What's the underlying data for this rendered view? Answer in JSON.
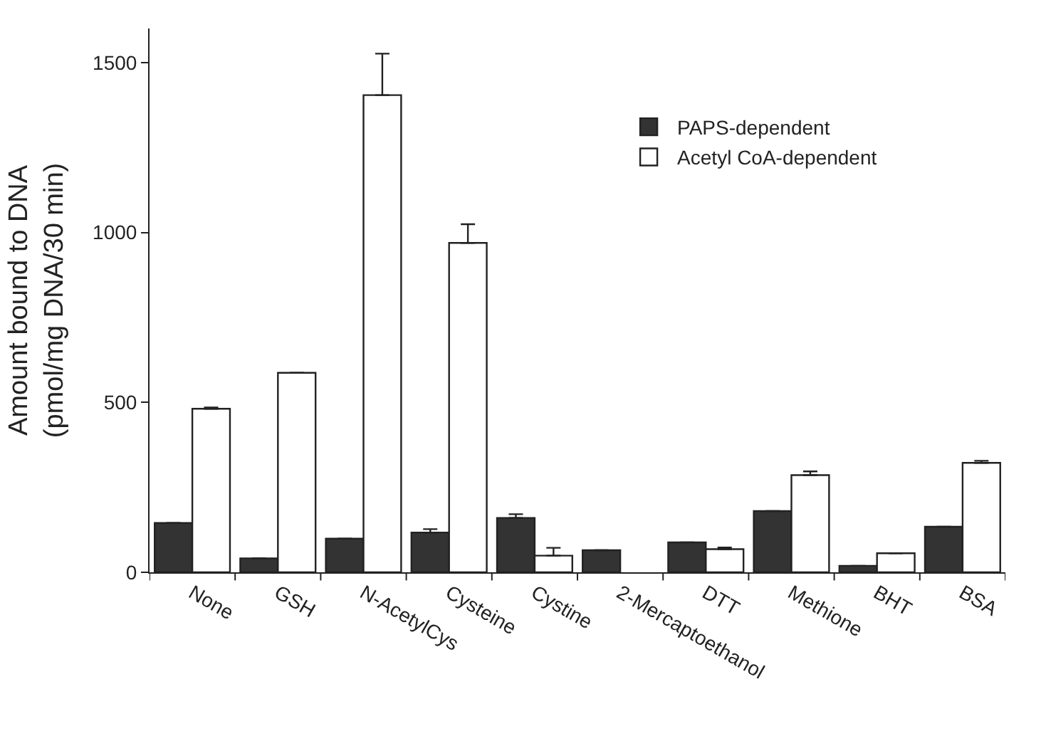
{
  "chart_data": {
    "type": "bar",
    "ylabel": "Amount bound to DNA\n(pmol/mg DNA/30 min)",
    "categories": [
      "None",
      "GSH",
      "N-AcetylCys",
      "Cysteine",
      "Cystine",
      "2-Mercaptoethanol",
      "DTT",
      "Methione",
      "BHT",
      "BSA"
    ],
    "series": [
      {
        "name": "PAPS-dependent",
        "color": "#333333",
        "values": [
          145,
          41,
          99,
          117,
          160,
          65,
          88,
          180,
          19,
          134
        ],
        "errors": [
          null,
          null,
          null,
          [
            117,
            127
          ],
          [
            160,
            171
          ],
          null,
          null,
          null,
          null,
          null
        ]
      },
      {
        "name": "Acetyl CoA-dependent",
        "color": "#ffffff",
        "values": [
          481,
          587,
          1404,
          969,
          49,
          null,
          68,
          286,
          56,
          322
        ],
        "errors": [
          [
            481,
            485
          ],
          null,
          [
            1404,
            1526
          ],
          [
            969,
            1024
          ],
          [
            49,
            72
          ],
          null,
          [
            68,
            73
          ],
          [
            286,
            297
          ],
          null,
          [
            322,
            328
          ]
        ]
      }
    ],
    "ylim": [
      0,
      1600
    ],
    "yticks": [
      0,
      500,
      1000,
      1500
    ],
    "legend": "top right"
  }
}
